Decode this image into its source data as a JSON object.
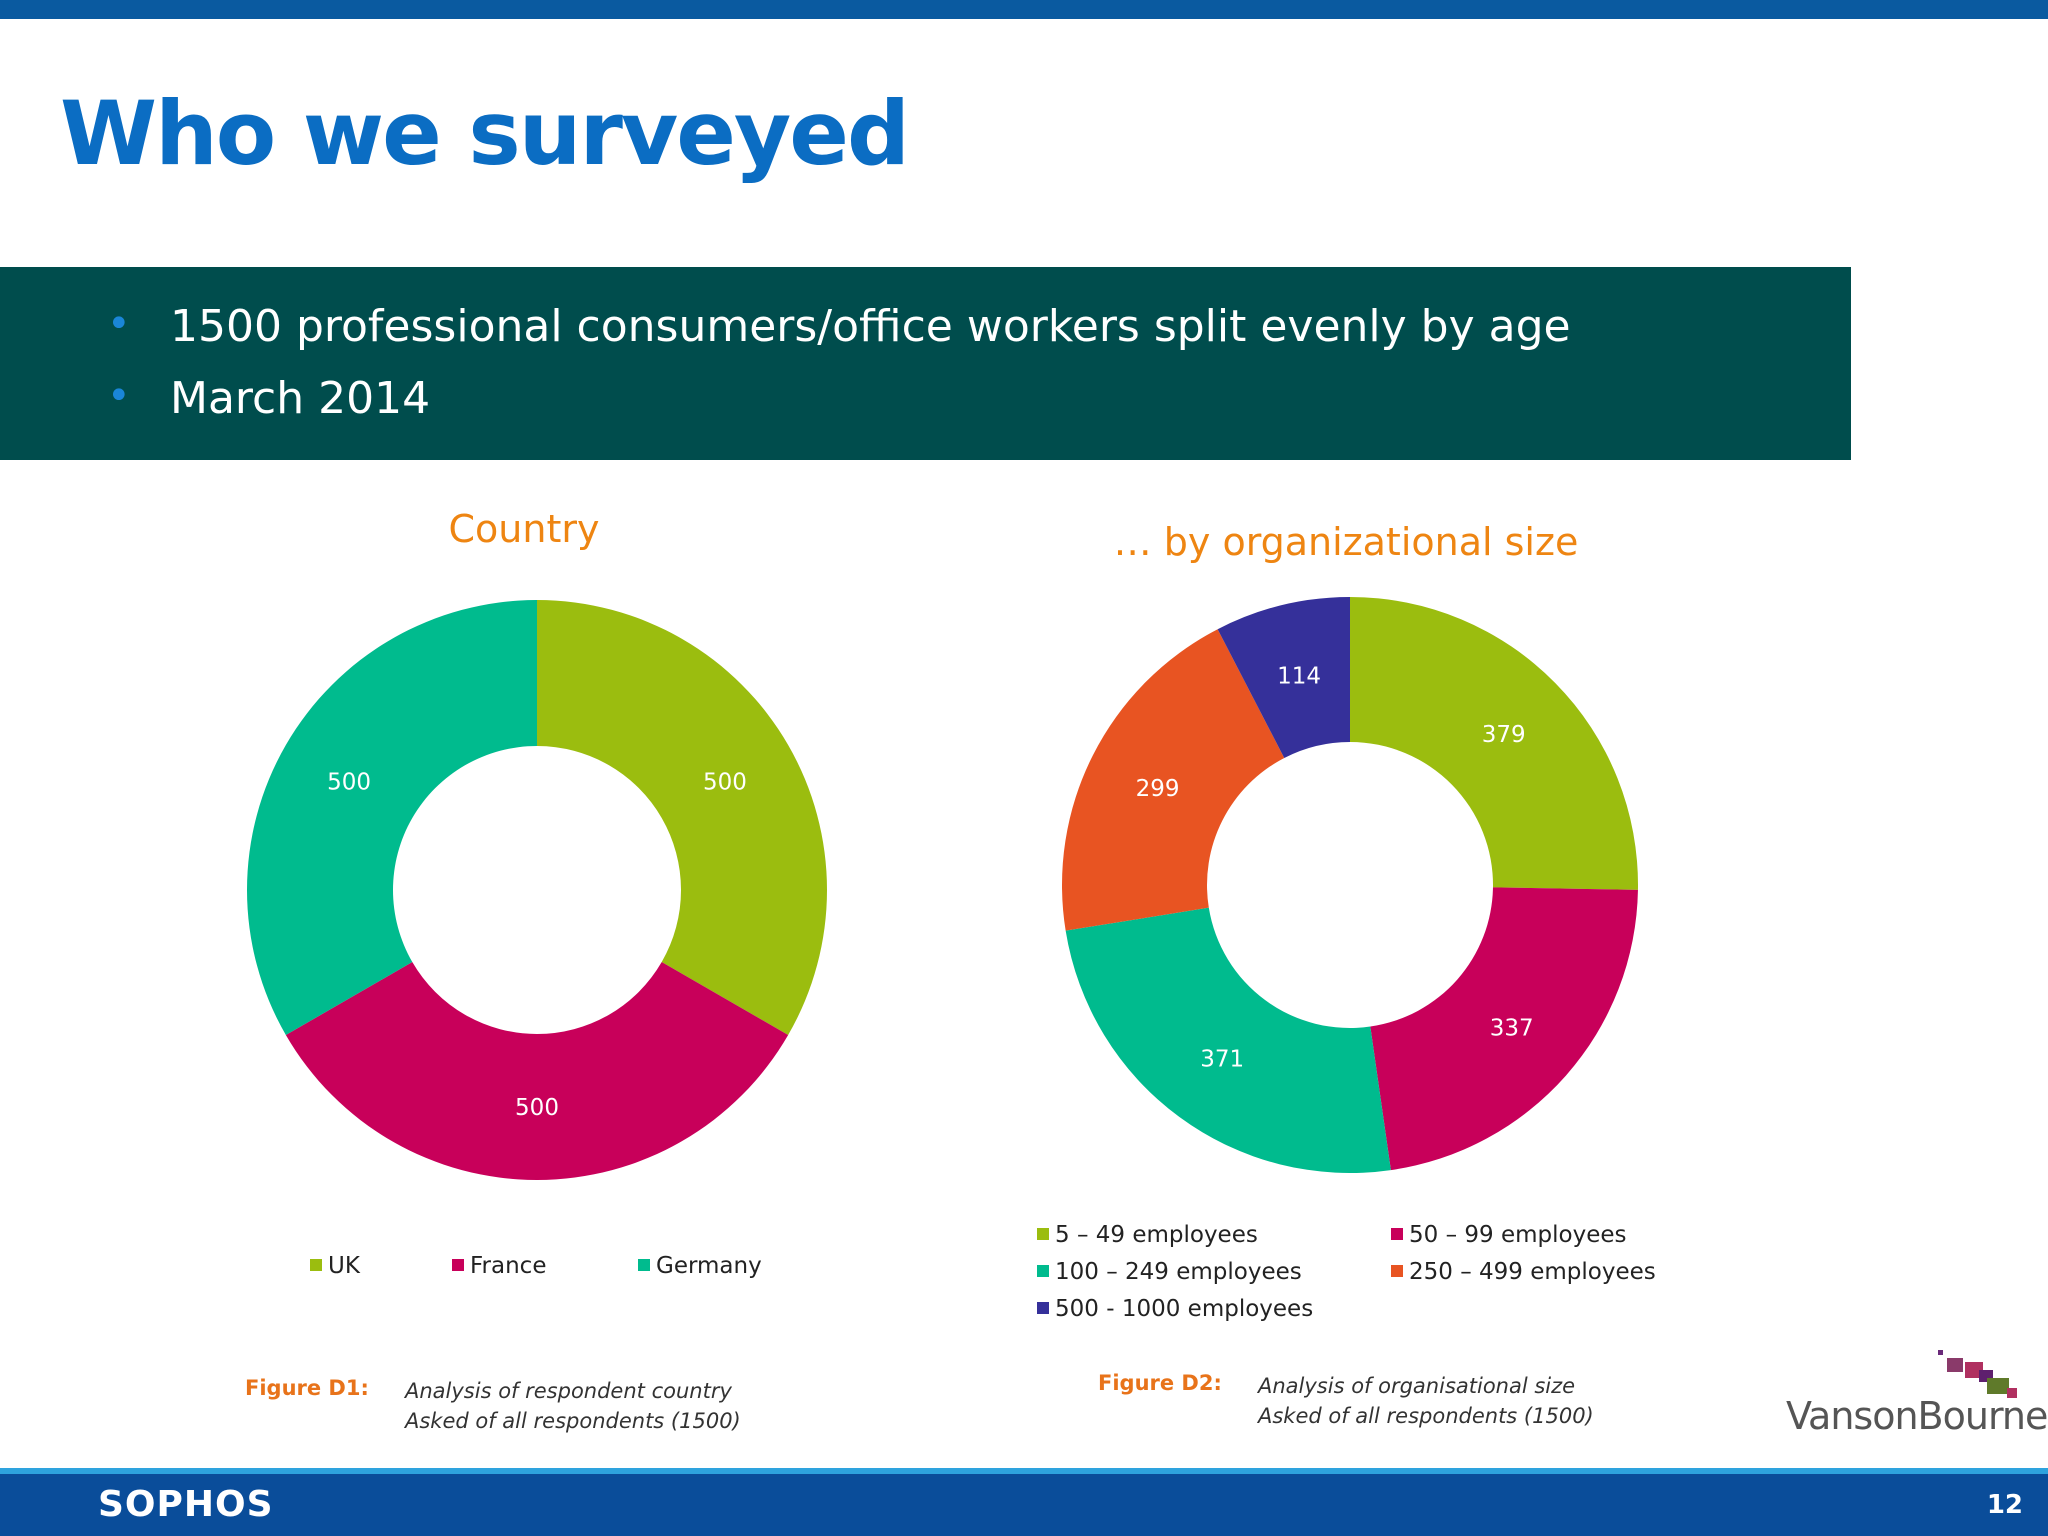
{
  "header": {
    "title": "Who we surveyed"
  },
  "banner": {
    "bullets": [
      "1500 professional consumers/office workers split evenly by age",
      "March 2014"
    ]
  },
  "chart_data": [
    {
      "type": "pie",
      "title": "Country",
      "hole": true,
      "legend": "bottom",
      "slices": [
        {
          "name": "UK",
          "value": 500,
          "label": "500",
          "color": "#9bbd0f"
        },
        {
          "name": "France",
          "value": 500,
          "label": "500",
          "color": "#c8005a"
        },
        {
          "name": "Germany",
          "value": 500,
          "label": "500",
          "color": "#00bb8e"
        }
      ]
    },
    {
      "type": "pie",
      "title": "… by organizational size",
      "hole": true,
      "legend": "bottom",
      "slices": [
        {
          "name": "5 – 49 employees",
          "value": 379,
          "label": "379",
          "color": "#9bbd0f"
        },
        {
          "name": "50 – 99 employees",
          "value": 337,
          "label": "337",
          "color": "#c8005a"
        },
        {
          "name": "100 – 249 employees",
          "value": 371,
          "label": "371",
          "color": "#00bb8e"
        },
        {
          "name": "250 – 499 employees",
          "value": 299,
          "label": "299",
          "color": "#e85422"
        },
        {
          "name": "500 - 1000 employees",
          "value": 114,
          "label": "114",
          "color": "#35309a"
        }
      ]
    }
  ],
  "captions": [
    {
      "figure": "Figure D1:",
      "lines": [
        "Analysis of respondent country",
        "Asked of all respondents (1500)"
      ]
    },
    {
      "figure": "Figure D2:",
      "lines": [
        "Analysis of organisational size",
        "Asked of all respondents (1500)"
      ]
    }
  ],
  "logo": {
    "text": "VansonBourne"
  },
  "footer": {
    "brand": "SOPHOS",
    "page_number": "12"
  }
}
